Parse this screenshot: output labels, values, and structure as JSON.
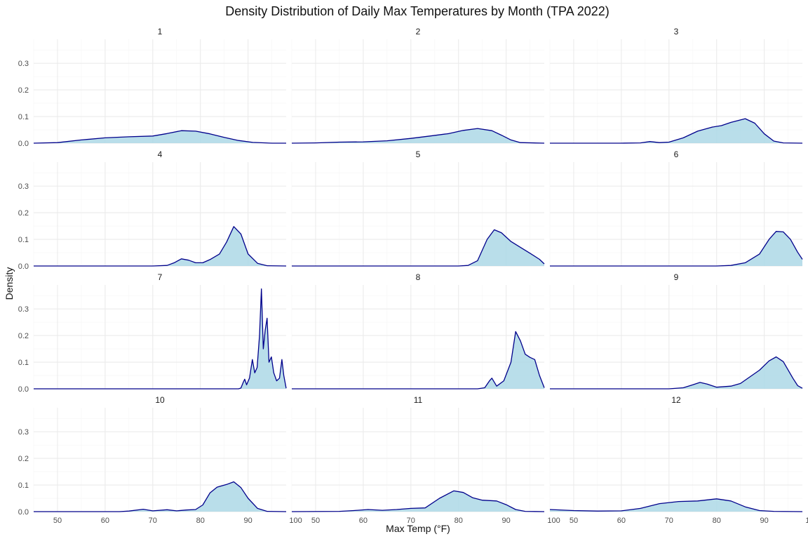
{
  "chart_data": {
    "type": "area",
    "title": "Density Distribution of Daily Max Temperatures by Month (TPA 2022)",
    "xlabel": "Max Temp (°F)",
    "ylabel": "Density",
    "xlim": [
      45,
      98
    ],
    "ylim": [
      0,
      0.39
    ],
    "x_ticks": [
      "50",
      "60",
      "70",
      "80",
      "90",
      "100"
    ],
    "y_ticks": [
      "0.0",
      "0.1",
      "0.2",
      "0.3"
    ],
    "grid": true,
    "colors": {
      "fill": "#add8e6",
      "line": "#00008b",
      "grid_major": "#ebebeb",
      "grid_minor": "#f5f5f5"
    },
    "panels": [
      {
        "label": "1",
        "points": [
          [
            45,
            0
          ],
          [
            50,
            0.002
          ],
          [
            55,
            0.012
          ],
          [
            60,
            0.02
          ],
          [
            65,
            0.024
          ],
          [
            70,
            0.027
          ],
          [
            73,
            0.036
          ],
          [
            76,
            0.047
          ],
          [
            79,
            0.045
          ],
          [
            82,
            0.035
          ],
          [
            85,
            0.022
          ],
          [
            88,
            0.01
          ],
          [
            91,
            0.003
          ],
          [
            95,
            0
          ],
          [
            98,
            0
          ]
        ]
      },
      {
        "label": "2",
        "points": [
          [
            45,
            0
          ],
          [
            50,
            0.001
          ],
          [
            55,
            0.004
          ],
          [
            60,
            0.005
          ],
          [
            65,
            0.009
          ],
          [
            70,
            0.018
          ],
          [
            74,
            0.027
          ],
          [
            78,
            0.036
          ],
          [
            81,
            0.048
          ],
          [
            84,
            0.055
          ],
          [
            87,
            0.047
          ],
          [
            89,
            0.03
          ],
          [
            91,
            0.012
          ],
          [
            93,
            0.002
          ],
          [
            98,
            0
          ]
        ]
      },
      {
        "label": "3",
        "points": [
          [
            45,
            0
          ],
          [
            60,
            0
          ],
          [
            64,
            0.001
          ],
          [
            66,
            0.006
          ],
          [
            68,
            0.002
          ],
          [
            70,
            0.004
          ],
          [
            73,
            0.02
          ],
          [
            76,
            0.045
          ],
          [
            79,
            0.06
          ],
          [
            81,
            0.066
          ],
          [
            83,
            0.078
          ],
          [
            86,
            0.092
          ],
          [
            88,
            0.075
          ],
          [
            90,
            0.035
          ],
          [
            92,
            0.008
          ],
          [
            94,
            0.001
          ],
          [
            98,
            0
          ]
        ]
      },
      {
        "label": "4",
        "points": [
          [
            45,
            0
          ],
          [
            70,
            0
          ],
          [
            73,
            0.002
          ],
          [
            74.5,
            0.012
          ],
          [
            76,
            0.027
          ],
          [
            77.5,
            0.022
          ],
          [
            79,
            0.012
          ],
          [
            80.5,
            0.012
          ],
          [
            82,
            0.024
          ],
          [
            84,
            0.045
          ],
          [
            85.5,
            0.09
          ],
          [
            87,
            0.148
          ],
          [
            88.5,
            0.12
          ],
          [
            90,
            0.045
          ],
          [
            92,
            0.01
          ],
          [
            94,
            0.001
          ],
          [
            98,
            0
          ]
        ]
      },
      {
        "label": "5",
        "points": [
          [
            45,
            0
          ],
          [
            80,
            0
          ],
          [
            82,
            0.002
          ],
          [
            84,
            0.02
          ],
          [
            86,
            0.1
          ],
          [
            87.5,
            0.136
          ],
          [
            89,
            0.125
          ],
          [
            91,
            0.092
          ],
          [
            93,
            0.07
          ],
          [
            95,
            0.048
          ],
          [
            97,
            0.025
          ],
          [
            98,
            0.008
          ]
        ]
      },
      {
        "label": "6",
        "points": [
          [
            45,
            0
          ],
          [
            80,
            0
          ],
          [
            83,
            0.002
          ],
          [
            86,
            0.012
          ],
          [
            89,
            0.045
          ],
          [
            91,
            0.1
          ],
          [
            92.5,
            0.13
          ],
          [
            94,
            0.128
          ],
          [
            95.5,
            0.1
          ],
          [
            97,
            0.052
          ],
          [
            98,
            0.025
          ]
        ]
      },
      {
        "label": "7",
        "points": [
          [
            45,
            0
          ],
          [
            88,
            0
          ],
          [
            88.5,
            0.003
          ],
          [
            89,
            0.025
          ],
          [
            89.3,
            0.036
          ],
          [
            89.7,
            0.015
          ],
          [
            90.3,
            0.04
          ],
          [
            90.9,
            0.11
          ],
          [
            91.4,
            0.06
          ],
          [
            91.9,
            0.08
          ],
          [
            92.4,
            0.2
          ],
          [
            92.8,
            0.375
          ],
          [
            93.2,
            0.15
          ],
          [
            93.6,
            0.22
          ],
          [
            94.0,
            0.265
          ],
          [
            94.4,
            0.1
          ],
          [
            94.9,
            0.12
          ],
          [
            95.4,
            0.06
          ],
          [
            96.0,
            0.03
          ],
          [
            96.6,
            0.04
          ],
          [
            97.1,
            0.11
          ],
          [
            97.5,
            0.05
          ],
          [
            98,
            0.002
          ]
        ]
      },
      {
        "label": "8",
        "points": [
          [
            45,
            0
          ],
          [
            84,
            0
          ],
          [
            85.5,
            0.004
          ],
          [
            86.5,
            0.03
          ],
          [
            87,
            0.04
          ],
          [
            88,
            0.01
          ],
          [
            89.5,
            0.03
          ],
          [
            91,
            0.1
          ],
          [
            92,
            0.215
          ],
          [
            93,
            0.18
          ],
          [
            94,
            0.13
          ],
          [
            95,
            0.118
          ],
          [
            96,
            0.11
          ],
          [
            97,
            0.05
          ],
          [
            98,
            0.004
          ]
        ]
      },
      {
        "label": "9",
        "points": [
          [
            45,
            0
          ],
          [
            70,
            0
          ],
          [
            73,
            0.004
          ],
          [
            75,
            0.015
          ],
          [
            76.5,
            0.024
          ],
          [
            78,
            0.018
          ],
          [
            80,
            0.006
          ],
          [
            83,
            0.01
          ],
          [
            85,
            0.02
          ],
          [
            87,
            0.045
          ],
          [
            89,
            0.07
          ],
          [
            91,
            0.105
          ],
          [
            92.5,
            0.12
          ],
          [
            94,
            0.102
          ],
          [
            96,
            0.04
          ],
          [
            97,
            0.012
          ],
          [
            98,
            0.002
          ]
        ]
      },
      {
        "label": "10",
        "points": [
          [
            45,
            0
          ],
          [
            63,
            0
          ],
          [
            65,
            0.002
          ],
          [
            68,
            0.009
          ],
          [
            70,
            0.003
          ],
          [
            73,
            0.007
          ],
          [
            75,
            0.003
          ],
          [
            77,
            0.006
          ],
          [
            79,
            0.008
          ],
          [
            80.5,
            0.025
          ],
          [
            82,
            0.07
          ],
          [
            83.5,
            0.092
          ],
          [
            85.5,
            0.102
          ],
          [
            87,
            0.112
          ],
          [
            88.5,
            0.09
          ],
          [
            90,
            0.05
          ],
          [
            92,
            0.012
          ],
          [
            94,
            0.001
          ],
          [
            98,
            0
          ]
        ]
      },
      {
        "label": "11",
        "points": [
          [
            45,
            0
          ],
          [
            55,
            0.001
          ],
          [
            58,
            0.004
          ],
          [
            61,
            0.008
          ],
          [
            64,
            0.005
          ],
          [
            67,
            0.008
          ],
          [
            70,
            0.012
          ],
          [
            73,
            0.014
          ],
          [
            76,
            0.05
          ],
          [
            79,
            0.078
          ],
          [
            81,
            0.072
          ],
          [
            83,
            0.052
          ],
          [
            85,
            0.043
          ],
          [
            88,
            0.04
          ],
          [
            90,
            0.026
          ],
          [
            92,
            0.008
          ],
          [
            94,
            0.001
          ],
          [
            98,
            0
          ]
        ]
      },
      {
        "label": "12",
        "points": [
          [
            45,
            0.008
          ],
          [
            50,
            0.004
          ],
          [
            55,
            0.002
          ],
          [
            60,
            0.003
          ],
          [
            64,
            0.012
          ],
          [
            68,
            0.03
          ],
          [
            72,
            0.038
          ],
          [
            76,
            0.04
          ],
          [
            80,
            0.048
          ],
          [
            83,
            0.04
          ],
          [
            86,
            0.018
          ],
          [
            89,
            0.004
          ],
          [
            92,
            0.001
          ],
          [
            98,
            0
          ]
        ]
      }
    ]
  }
}
